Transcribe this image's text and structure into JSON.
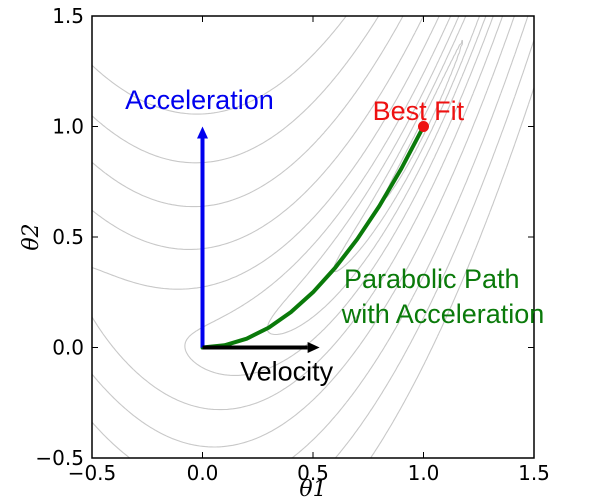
{
  "chart_data": {
    "type": "line",
    "title": "",
    "xlabel": "θ1",
    "ylabel": "θ2",
    "xlim": [
      -0.5,
      1.5
    ],
    "ylim": [
      -0.5,
      1.5
    ],
    "xticks": [
      "−0.5",
      "0.0",
      "0.5",
      "1.0",
      "1.5"
    ],
    "yticks": [
      "−0.5",
      "0.0",
      "0.5",
      "1.0",
      "1.5"
    ],
    "grid": false,
    "contours": {
      "color": "#c8c8c8",
      "levels": [
        0.02,
        0.1,
        0.3,
        0.7,
        1.5,
        3,
        5.5,
        9,
        14
      ]
    },
    "series": [
      {
        "color": "#0a7a0a",
        "x": [
          0,
          0.1,
          0.2,
          0.3,
          0.4,
          0.5,
          0.6,
          0.7,
          0.8,
          0.9,
          1.0
        ],
        "y": [
          0,
          0.01,
          0.04,
          0.09,
          0.16,
          0.25,
          0.36,
          0.49,
          0.64,
          0.81,
          1.0
        ]
      }
    ],
    "points": [
      {
        "x": 1.0,
        "y": 1.0,
        "color": "#ee1111"
      }
    ],
    "arrows": [
      {
        "from": [
          0,
          0
        ],
        "to": [
          0,
          1.0
        ],
        "color": "#0000ee"
      },
      {
        "from": [
          0,
          0
        ],
        "to": [
          0.53,
          0
        ],
        "color": "#000000"
      }
    ],
    "annotations": [
      {
        "text": "Acceleration",
        "x": -0.35,
        "y": 1.08,
        "color": "#0000ee"
      },
      {
        "text": "Best Fit",
        "x": 0.77,
        "y": 1.03,
        "color": "#ee1111"
      },
      {
        "text": "Parabolic Path",
        "x": 0.64,
        "y": 0.27,
        "color": "#0a7a0a"
      },
      {
        "text": "with Acceleration",
        "x": 0.63,
        "y": 0.11,
        "color": "#0a7a0a"
      },
      {
        "text": "Velocity",
        "x": 0.17,
        "y": -0.15,
        "color": "#000000"
      }
    ]
  }
}
